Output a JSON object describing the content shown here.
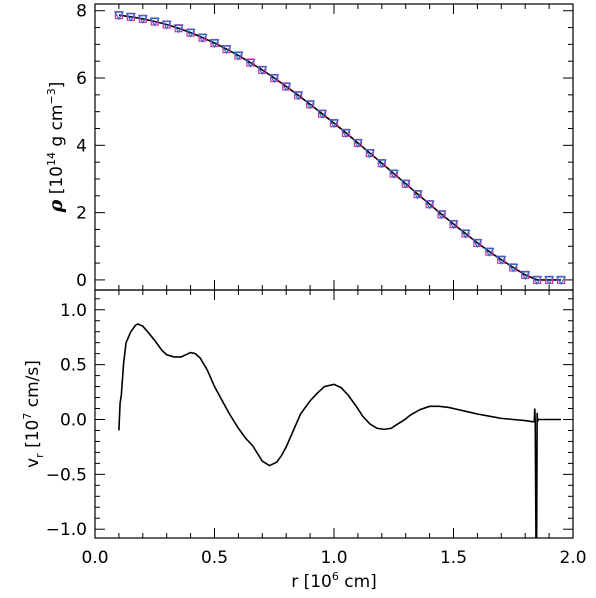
{
  "chart_data": [
    {
      "id": "density",
      "type": "line",
      "xlim": [
        0.0,
        2.0
      ],
      "ylim": [
        -0.3,
        8.2
      ],
      "yticks": [
        "0",
        "2",
        "4",
        "6",
        "8"
      ],
      "ylabel": {
        "symbol": "ρ",
        "open": " [10",
        "exp": "14",
        "unit": " g cm",
        "unit_exp": "−3",
        "close": "]"
      },
      "series": [
        {
          "style": "solid line with square and inverted-triangle markers",
          "line_color": "#000000",
          "marker_colors": [
            "#cc3399",
            "#3366cc"
          ],
          "x": [
            0.1,
            0.15,
            0.2,
            0.25,
            0.3,
            0.35,
            0.4,
            0.45,
            0.5,
            0.55,
            0.6,
            0.65,
            0.7,
            0.75,
            0.8,
            0.85,
            0.9,
            0.95,
            1.0,
            1.05,
            1.1,
            1.15,
            1.2,
            1.25,
            1.3,
            1.35,
            1.4,
            1.45,
            1.5,
            1.55,
            1.6,
            1.65,
            1.7,
            1.75,
            1.8,
            1.85,
            1.9,
            1.95
          ],
          "values": [
            7.87,
            7.82,
            7.76,
            7.68,
            7.59,
            7.48,
            7.35,
            7.2,
            7.04,
            6.86,
            6.67,
            6.46,
            6.24,
            6.0,
            5.75,
            5.49,
            5.22,
            4.94,
            4.66,
            4.37,
            4.07,
            3.77,
            3.47,
            3.16,
            2.86,
            2.55,
            2.25,
            1.95,
            1.66,
            1.38,
            1.1,
            0.84,
            0.6,
            0.37,
            0.15,
            0.0,
            0.0,
            0.0
          ]
        }
      ]
    },
    {
      "id": "velocity",
      "type": "line",
      "xlim": [
        0.0,
        2.0
      ],
      "ylim": [
        -1.08,
        1.18
      ],
      "yticks": [
        "−1.0",
        "−0.5",
        "0.0",
        "0.5",
        "1.0"
      ],
      "xticks": [
        "0.0",
        "0.5",
        "1.0",
        "1.5",
        "2.0"
      ],
      "xlabel": {
        "open": "r [10",
        "exp": "6",
        "close": " cm]"
      },
      "ylabel": {
        "symbol": "v",
        "sub": "r",
        "open": " [10",
        "exp": "7",
        "close": " cm/s]"
      },
      "series": [
        {
          "style": "solid line",
          "line_color": "#000000",
          "x": [
            0.1,
            0.105,
            0.11,
            0.12,
            0.13,
            0.15,
            0.17,
            0.18,
            0.2,
            0.22,
            0.25,
            0.28,
            0.3,
            0.33,
            0.36,
            0.4,
            0.42,
            0.44,
            0.47,
            0.5,
            0.53,
            0.56,
            0.6,
            0.63,
            0.66,
            0.7,
            0.73,
            0.76,
            0.78,
            0.8,
            0.83,
            0.86,
            0.9,
            0.93,
            0.96,
            1.0,
            1.03,
            1.06,
            1.09,
            1.12,
            1.15,
            1.18,
            1.21,
            1.24,
            1.26,
            1.29,
            1.32,
            1.36,
            1.4,
            1.44,
            1.48,
            1.52,
            1.56,
            1.6,
            1.65,
            1.7,
            1.75,
            1.8,
            1.83,
            1.838,
            1.84,
            1.842,
            1.845,
            1.848,
            1.85,
            1.852,
            1.854,
            1.856,
            1.86,
            1.95
          ],
          "values": [
            -0.1,
            0.15,
            0.22,
            0.52,
            0.7,
            0.8,
            0.86,
            0.87,
            0.85,
            0.8,
            0.72,
            0.63,
            0.59,
            0.57,
            0.57,
            0.61,
            0.6,
            0.56,
            0.45,
            0.3,
            0.18,
            0.06,
            -0.08,
            -0.17,
            -0.24,
            -0.38,
            -0.42,
            -0.39,
            -0.33,
            -0.25,
            -0.1,
            0.05,
            0.17,
            0.24,
            0.3,
            0.32,
            0.29,
            0.22,
            0.13,
            0.03,
            -0.04,
            -0.08,
            -0.09,
            -0.08,
            -0.05,
            -0.01,
            0.04,
            0.09,
            0.12,
            0.12,
            0.11,
            0.09,
            0.07,
            0.05,
            0.03,
            0.01,
            0.0,
            -0.01,
            -0.02,
            -0.02,
            0.1,
            -0.02,
            -1.07,
            -1.07,
            0.06,
            -0.02,
            0.0,
            0.0,
            0.0,
            0.0
          ]
        }
      ]
    }
  ]
}
